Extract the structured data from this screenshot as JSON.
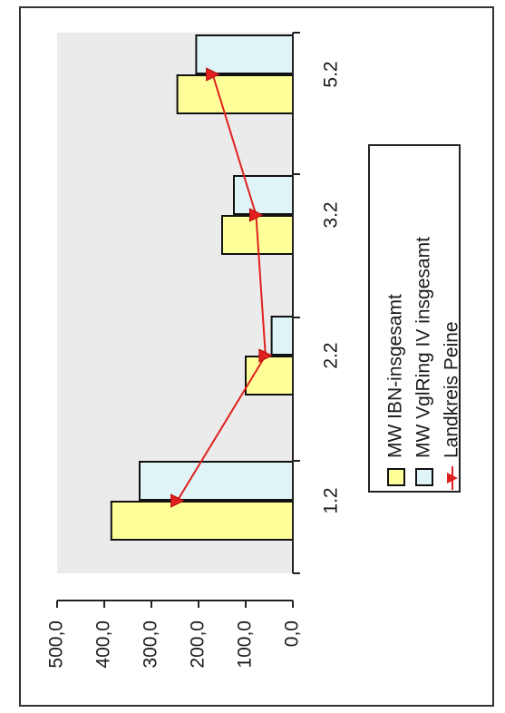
{
  "chart_data": {
    "type": "bar",
    "orientation": "rotated-90-clockwise",
    "categories": [
      "1.2",
      "2.2",
      "3.2",
      "5.2"
    ],
    "series": [
      {
        "name": "MW IBN-insgesamt",
        "type": "bar",
        "color": "#ffff99",
        "values": [
          385,
          100,
          150,
          245
        ]
      },
      {
        "name": "MW VglRing IV insgesamt",
        "type": "bar",
        "color": "#dff4f6",
        "values": [
          325,
          45,
          125,
          205
        ]
      },
      {
        "name": "Landkreis Peine",
        "type": "line",
        "color": "#e0201e",
        "marker": "triangle",
        "values": [
          245,
          58,
          78,
          170
        ]
      }
    ],
    "value_axis": {
      "min": 0,
      "max": 500,
      "step": 100,
      "tick_labels": [
        "0,0",
        "100,0",
        "200,0",
        "300,0",
        "400,0",
        "500,0"
      ]
    },
    "grid": false,
    "plot_background": "#ebebeb",
    "legend_position": "right"
  }
}
